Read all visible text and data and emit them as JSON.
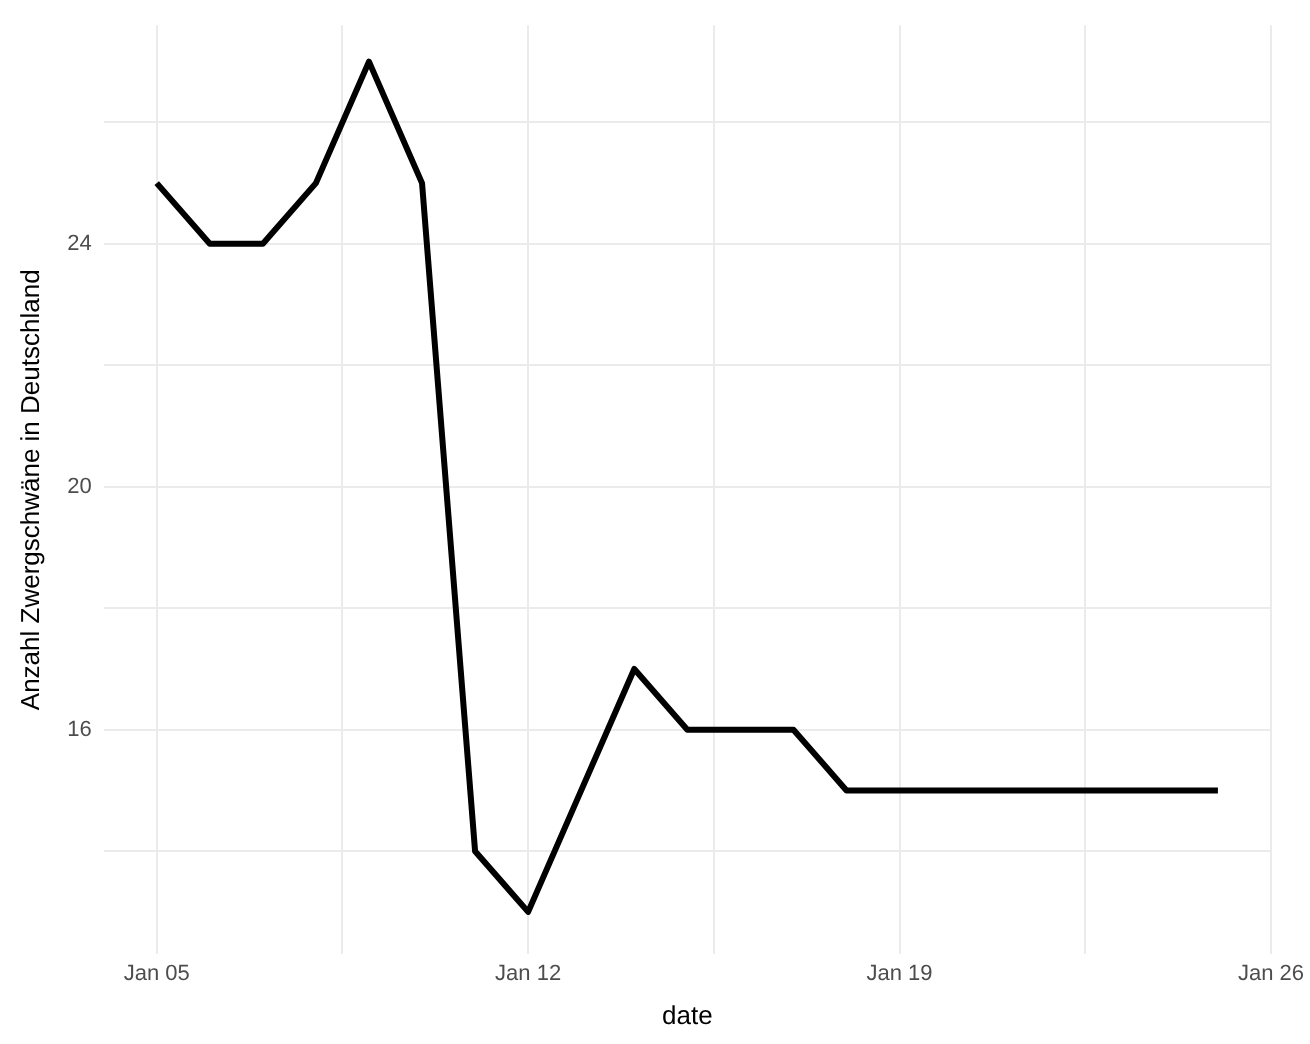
{
  "chart_data": {
    "type": "line",
    "xlabel": "date",
    "ylabel": "Anzahl Zwergschwäne in Deutschland",
    "x": [
      "--01-05",
      "--01-06",
      "--01-07",
      "--01-08",
      "--01-09",
      "--01-10",
      "--01-11",
      "--01-12",
      "--01-13",
      "--01-14",
      "--01-15",
      "--01-16",
      "--01-17",
      "--01-18",
      "--01-19",
      "--01-20",
      "--01-21",
      "--01-22",
      "--01-23",
      "--01-24",
      "--01-25"
    ],
    "series": [
      {
        "color": "#000000",
        "values": [
          25,
          24,
          24,
          25,
          27,
          25,
          14,
          13,
          15,
          17,
          16,
          16,
          16,
          15,
          15,
          15,
          15,
          15,
          15,
          15,
          15
        ]
      }
    ],
    "xlim": [
      "--01-04",
      "--01-26"
    ],
    "xticks": [
      {
        "value": "--01-05",
        "label": "Jan 05"
      },
      {
        "value": "--01-08T12:00",
        "label": null
      },
      {
        "value": "--01-12",
        "label": "Jan 12"
      },
      {
        "value": "--01-15T12:00",
        "label": null
      },
      {
        "value": "--01-19",
        "label": "Jan 19"
      },
      {
        "value": "--01-22T12:00",
        "label": null
      },
      {
        "value": "--01-26",
        "label": "Jan 26"
      }
    ],
    "ylim": [
      12.3,
      27.6
    ],
    "yticks": [
      {
        "value": 14,
        "label": null
      },
      16,
      {
        "value": 18,
        "label": null
      },
      20,
      {
        "value": 22,
        "label": null
      },
      24,
      {
        "value": 26,
        "label": null
      }
    ],
    "grid": true,
    "legend": false,
    "marker": "none",
    "line_style": "solid"
  }
}
